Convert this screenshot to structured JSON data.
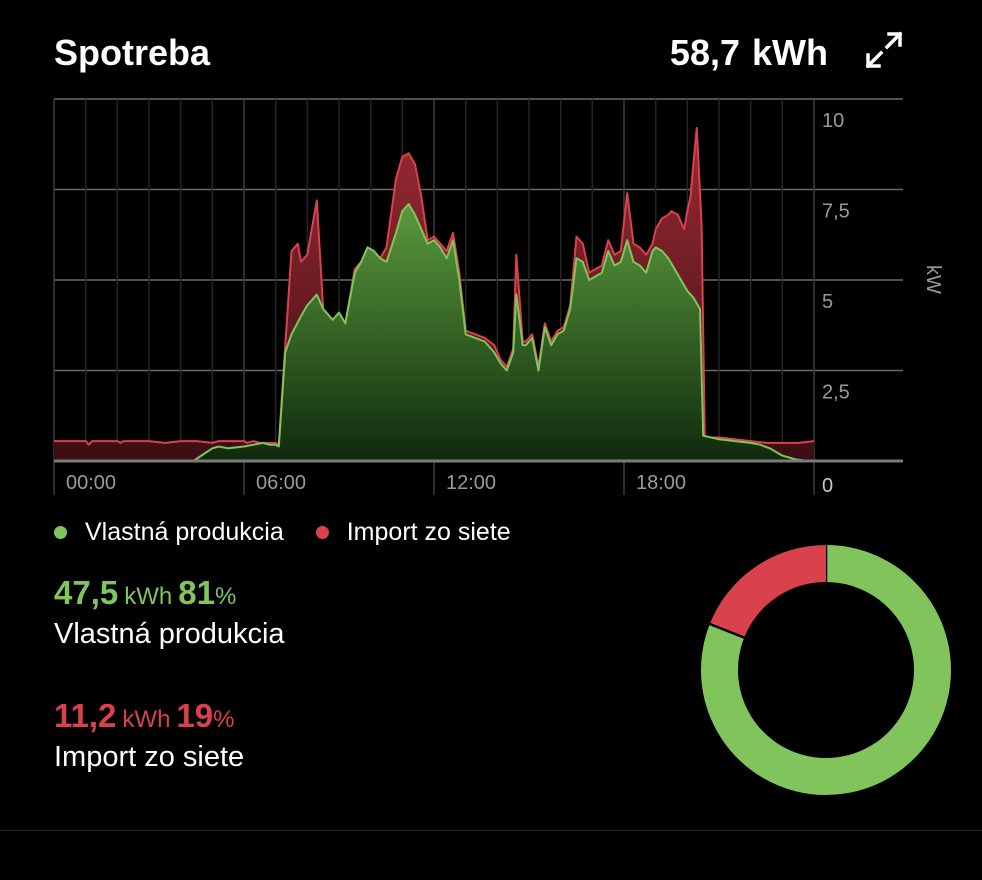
{
  "header": {
    "title": "Spotreba",
    "total_value": "58,7",
    "total_unit": "kWh",
    "expand_icon": "expand-arrows-icon"
  },
  "legend": {
    "production": {
      "label": "Vlastná produkcia",
      "color": "#82c45c"
    },
    "import": {
      "label": "Import zo siete",
      "color": "#d9424d"
    }
  },
  "stats": {
    "production": {
      "value": "47,5",
      "unit": "kWh",
      "percent": "81",
      "percent_sign": "%",
      "label": "Vlastná produkcia"
    },
    "import": {
      "value": "11,2",
      "unit": "kWh",
      "percent": "19",
      "percent_sign": "%",
      "label": "Import zo siete"
    }
  },
  "chart_data": {
    "type": "area",
    "ylabel": "kW",
    "ylim": [
      0,
      10
    ],
    "yticks": [
      {
        "value": 10,
        "label": "10"
      },
      {
        "value": 7.5,
        "label": "7,5"
      },
      {
        "value": 5,
        "label": "5"
      },
      {
        "value": 2.5,
        "label": "2,5"
      },
      {
        "value": 0,
        "label": "0"
      }
    ],
    "xlim": [
      0,
      24
    ],
    "xticks": [
      {
        "value": 0,
        "label": "00:00"
      },
      {
        "value": 6,
        "label": "06:00"
      },
      {
        "value": 12,
        "label": "12:00"
      },
      {
        "value": 18,
        "label": "18:00"
      }
    ],
    "grid": true,
    "series": [
      {
        "name": "Import zo siete",
        "color": "#d9424d",
        "points": [
          [
            0,
            0.55
          ],
          [
            1,
            0.55
          ],
          [
            1.1,
            0.45
          ],
          [
            1.2,
            0.55
          ],
          [
            2,
            0.55
          ],
          [
            2.1,
            0.5
          ],
          [
            2.2,
            0.55
          ],
          [
            3,
            0.55
          ],
          [
            3.5,
            0.5
          ],
          [
            4,
            0.55
          ],
          [
            4.5,
            0.55
          ],
          [
            5,
            0.5
          ],
          [
            5.2,
            0.55
          ],
          [
            6,
            0.55
          ],
          [
            6.1,
            0.5
          ],
          [
            6.3,
            0.55
          ],
          [
            6.5,
            0.5
          ],
          [
            7,
            0.5
          ],
          [
            7.1,
            0.45
          ],
          [
            7.5,
            5.8
          ],
          [
            7.7,
            6.0
          ],
          [
            7.8,
            5.5
          ],
          [
            8.0,
            5.7
          ],
          [
            8.3,
            7.2
          ],
          [
            8.5,
            4.2
          ],
          [
            8.8,
            3.9
          ],
          [
            9.0,
            4.1
          ],
          [
            9.2,
            3.8
          ],
          [
            9.5,
            5.3
          ],
          [
            9.7,
            5.5
          ],
          [
            9.9,
            5.9
          ],
          [
            10.1,
            5.8
          ],
          [
            10.3,
            5.6
          ],
          [
            10.5,
            5.9
          ],
          [
            10.8,
            7.8
          ],
          [
            11.0,
            8.4
          ],
          [
            11.2,
            8.5
          ],
          [
            11.4,
            8.2
          ],
          [
            11.6,
            7.3
          ],
          [
            11.8,
            6.1
          ],
          [
            12.0,
            6.2
          ],
          [
            12.2,
            6.0
          ],
          [
            12.4,
            5.8
          ],
          [
            12.6,
            6.3
          ],
          [
            12.8,
            5.2
          ],
          [
            13.0,
            3.6
          ],
          [
            13.3,
            3.5
          ],
          [
            13.6,
            3.4
          ],
          [
            13.9,
            3.2
          ],
          [
            14.1,
            2.8
          ],
          [
            14.3,
            2.6
          ],
          [
            14.5,
            3.1
          ],
          [
            14.6,
            5.7
          ],
          [
            14.8,
            3.3
          ],
          [
            14.9,
            3.3
          ],
          [
            15.1,
            3.5
          ],
          [
            15.3,
            2.6
          ],
          [
            15.5,
            3.8
          ],
          [
            15.7,
            3.3
          ],
          [
            15.9,
            3.6
          ],
          [
            16.1,
            3.7
          ],
          [
            16.3,
            4.3
          ],
          [
            16.5,
            6.2
          ],
          [
            16.7,
            6.0
          ],
          [
            16.9,
            5.2
          ],
          [
            17.1,
            5.3
          ],
          [
            17.3,
            5.4
          ],
          [
            17.5,
            6.1
          ],
          [
            17.7,
            5.7
          ],
          [
            17.9,
            5.8
          ],
          [
            18.1,
            7.4
          ],
          [
            18.3,
            6.0
          ],
          [
            18.5,
            5.9
          ],
          [
            18.7,
            5.7
          ],
          [
            18.9,
            6.0
          ],
          [
            19.0,
            6.4
          ],
          [
            19.2,
            6.7
          ],
          [
            19.4,
            6.8
          ],
          [
            19.5,
            6.9
          ],
          [
            19.7,
            6.8
          ],
          [
            19.9,
            6.4
          ],
          [
            20.0,
            6.9
          ],
          [
            20.1,
            7.3
          ],
          [
            20.2,
            8.3
          ],
          [
            20.3,
            9.2
          ],
          [
            20.45,
            6.5
          ],
          [
            20.55,
            0.65
          ],
          [
            21,
            0.65
          ],
          [
            21.5,
            0.6
          ],
          [
            22,
            0.55
          ],
          [
            22.5,
            0.5
          ],
          [
            23,
            0.5
          ],
          [
            23.5,
            0.5
          ],
          [
            24,
            0.55
          ]
        ]
      },
      {
        "name": "Vlastná produkcia",
        "color": "#82c45c",
        "points": [
          [
            0,
            0
          ],
          [
            4.4,
            0
          ],
          [
            5.0,
            0.35
          ],
          [
            5.2,
            0.4
          ],
          [
            5.5,
            0.35
          ],
          [
            6,
            0.4
          ],
          [
            6.3,
            0.45
          ],
          [
            6.6,
            0.5
          ],
          [
            6.8,
            0.45
          ],
          [
            7.0,
            0.45
          ],
          [
            7.1,
            0.4
          ],
          [
            7.3,
            3.0
          ],
          [
            7.5,
            3.5
          ],
          [
            7.8,
            4.0
          ],
          [
            8.0,
            4.3
          ],
          [
            8.3,
            4.6
          ],
          [
            8.5,
            4.2
          ],
          [
            8.8,
            3.9
          ],
          [
            9.0,
            4.1
          ],
          [
            9.2,
            3.8
          ],
          [
            9.5,
            5.2
          ],
          [
            9.7,
            5.5
          ],
          [
            9.9,
            5.9
          ],
          [
            10.1,
            5.8
          ],
          [
            10.3,
            5.6
          ],
          [
            10.5,
            5.5
          ],
          [
            10.8,
            6.3
          ],
          [
            11.0,
            6.9
          ],
          [
            11.2,
            7.1
          ],
          [
            11.4,
            6.8
          ],
          [
            11.6,
            6.4
          ],
          [
            11.8,
            6.0
          ],
          [
            12.0,
            6.1
          ],
          [
            12.2,
            5.9
          ],
          [
            12.4,
            5.6
          ],
          [
            12.6,
            6.1
          ],
          [
            12.8,
            5.0
          ],
          [
            13.0,
            3.5
          ],
          [
            13.3,
            3.4
          ],
          [
            13.6,
            3.3
          ],
          [
            13.9,
            3.0
          ],
          [
            14.1,
            2.7
          ],
          [
            14.3,
            2.5
          ],
          [
            14.5,
            3.0
          ],
          [
            14.6,
            4.6
          ],
          [
            14.8,
            3.2
          ],
          [
            14.9,
            3.2
          ],
          [
            15.1,
            3.4
          ],
          [
            15.3,
            2.5
          ],
          [
            15.5,
            3.7
          ],
          [
            15.7,
            3.2
          ],
          [
            15.9,
            3.5
          ],
          [
            16.1,
            3.6
          ],
          [
            16.3,
            4.2
          ],
          [
            16.5,
            5.6
          ],
          [
            16.7,
            5.5
          ],
          [
            16.9,
            5.0
          ],
          [
            17.1,
            5.1
          ],
          [
            17.3,
            5.2
          ],
          [
            17.5,
            5.8
          ],
          [
            17.7,
            5.4
          ],
          [
            17.9,
            5.5
          ],
          [
            18.1,
            6.1
          ],
          [
            18.3,
            5.5
          ],
          [
            18.5,
            5.4
          ],
          [
            18.7,
            5.2
          ],
          [
            18.9,
            5.8
          ],
          [
            19.0,
            5.9
          ],
          [
            19.2,
            5.8
          ],
          [
            19.4,
            5.6
          ],
          [
            19.6,
            5.3
          ],
          [
            19.8,
            5.0
          ],
          [
            20.0,
            4.7
          ],
          [
            20.2,
            4.5
          ],
          [
            20.4,
            4.2
          ],
          [
            20.5,
            0.7
          ],
          [
            21,
            0.6
          ],
          [
            21.5,
            0.55
          ],
          [
            22,
            0.5
          ],
          [
            22.3,
            0.45
          ],
          [
            22.6,
            0.35
          ],
          [
            23.0,
            0.15
          ],
          [
            23.4,
            0.05
          ],
          [
            23.8,
            0
          ],
          [
            24,
            0
          ]
        ]
      }
    ]
  },
  "donut_data": {
    "type": "pie",
    "slices": [
      {
        "name": "Vlastná produkcia",
        "value": 81,
        "color": "#82c45c"
      },
      {
        "name": "Import zo siete",
        "value": 19,
        "color": "#d9424d"
      }
    ]
  }
}
